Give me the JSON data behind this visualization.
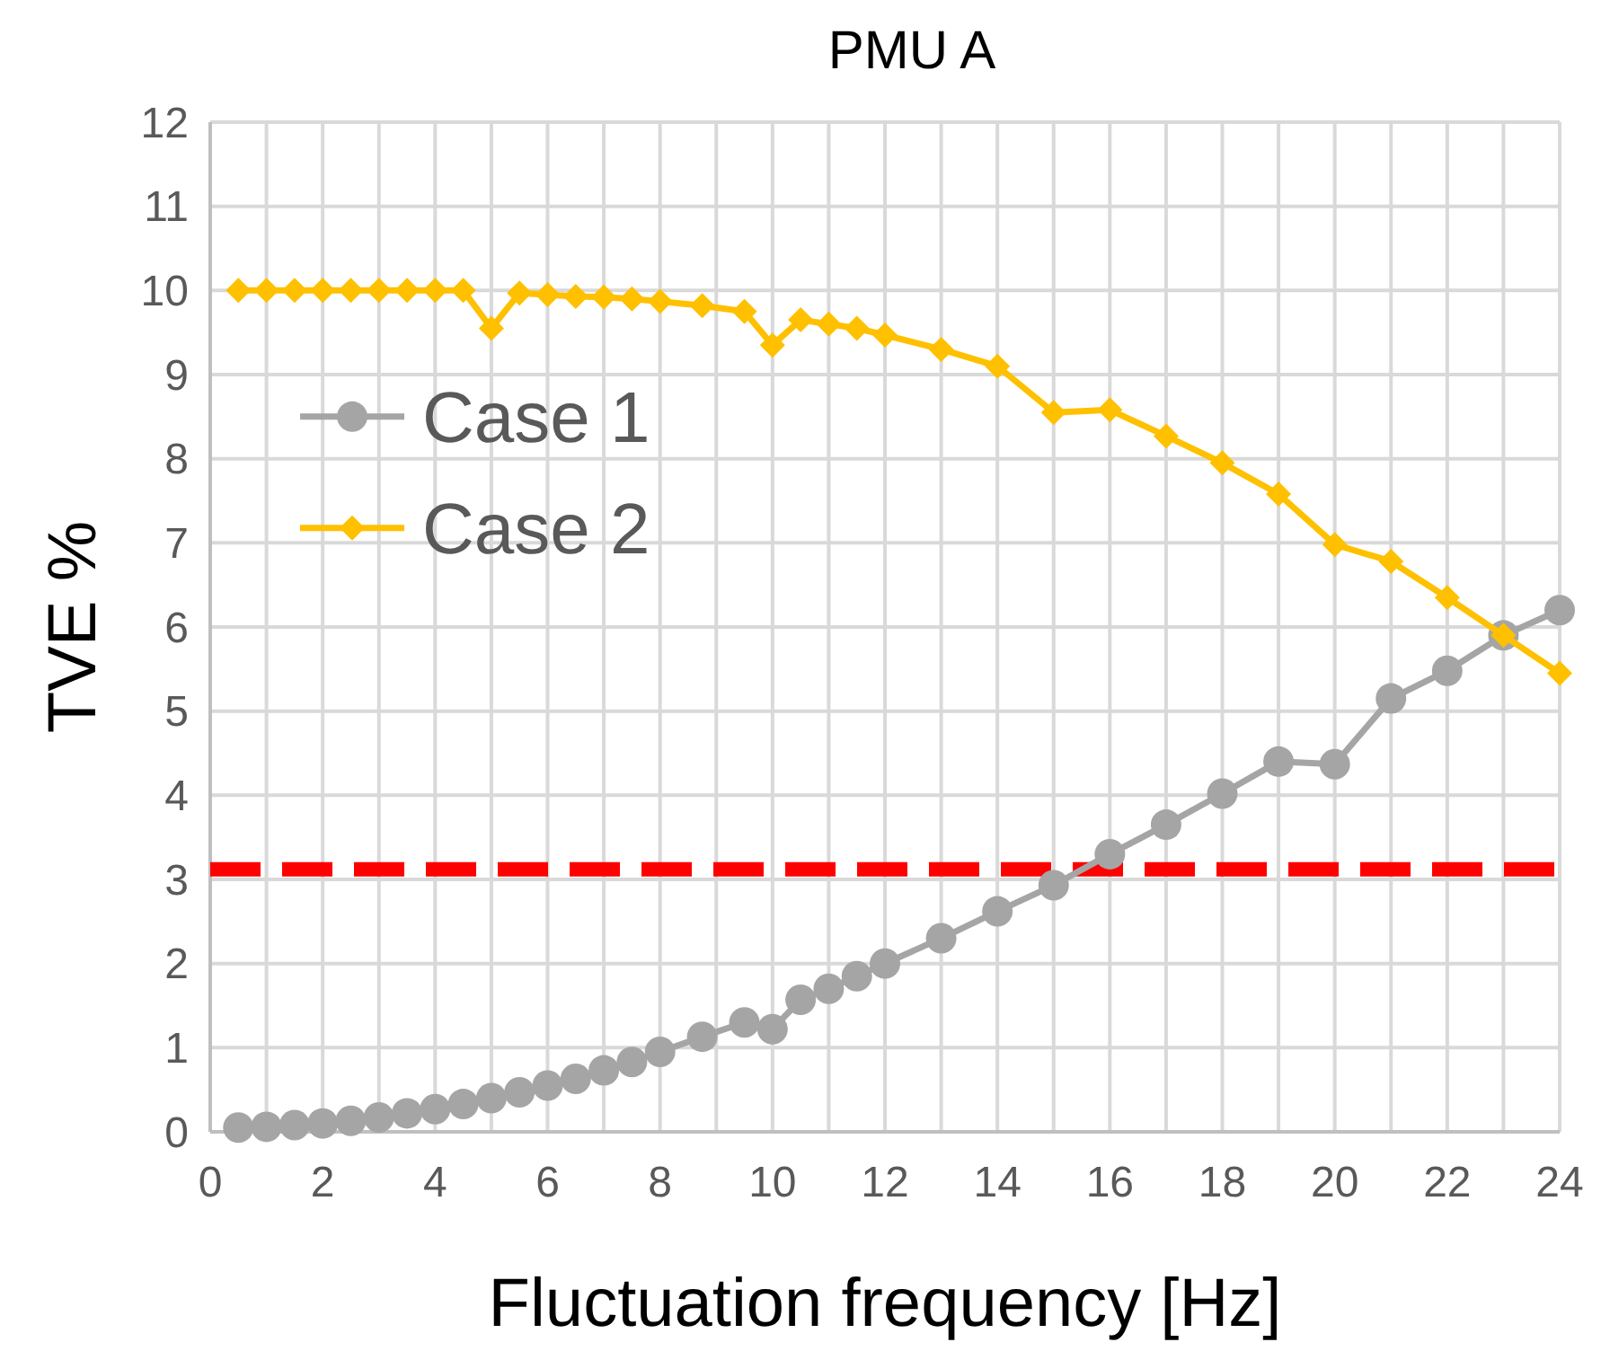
{
  "chart_data": {
    "type": "line",
    "title": "PMU A",
    "xlabel": "Fluctuation frequency [Hz]",
    "ylabel": "TVE %",
    "xlim": [
      0,
      24
    ],
    "xticks": [
      0,
      2,
      4,
      6,
      8,
      10,
      12,
      14,
      16,
      18,
      20,
      22,
      24
    ],
    "ylim": [
      0,
      12
    ],
    "yticks": [
      0,
      1,
      2,
      3,
      4,
      5,
      6,
      7,
      8,
      9,
      10,
      11,
      12
    ],
    "grid": true,
    "legend": "left",
    "line_style": "solid",
    "x": [
      0.5,
      1,
      1.5,
      2,
      2.5,
      3,
      3.5,
      4,
      4.5,
      5,
      5.5,
      6,
      6.5,
      7,
      7.5,
      8,
      8.75,
      9.5,
      10,
      10.5,
      11,
      11.5,
      12,
      13,
      14,
      15,
      16,
      17,
      18,
      19,
      20,
      21,
      22,
      23,
      24
    ],
    "series": [
      {
        "name": "Case 1",
        "color": "#a5a5a5",
        "marker": "circle",
        "values": [
          0.05,
          0.06,
          0.08,
          0.1,
          0.13,
          0.17,
          0.22,
          0.27,
          0.33,
          0.4,
          0.47,
          0.55,
          0.63,
          0.73,
          0.83,
          0.95,
          1.13,
          1.3,
          1.22,
          1.57,
          1.7,
          1.85,
          2.0,
          2.3,
          2.62,
          2.93,
          3.3,
          3.65,
          4.02,
          4.4,
          4.37,
          5.15,
          5.48,
          5.9,
          6.2
        ]
      },
      {
        "name": "Case 2",
        "color": "#ffc000",
        "marker": "diamond",
        "values": [
          10,
          10,
          10,
          10,
          10,
          10,
          10,
          10,
          10,
          9.55,
          9.97,
          9.95,
          9.93,
          9.92,
          9.9,
          9.87,
          9.82,
          9.75,
          9.35,
          9.65,
          9.6,
          9.55,
          9.47,
          9.3,
          9.1,
          8.55,
          8.58,
          8.27,
          7.95,
          7.58,
          6.98,
          6.78,
          6.35,
          5.9,
          5.45
        ]
      }
    ],
    "ref_lines": [
      {
        "axis": "y",
        "value": 3.12,
        "color": "#ff0000",
        "line_style": "dashed"
      }
    ]
  }
}
